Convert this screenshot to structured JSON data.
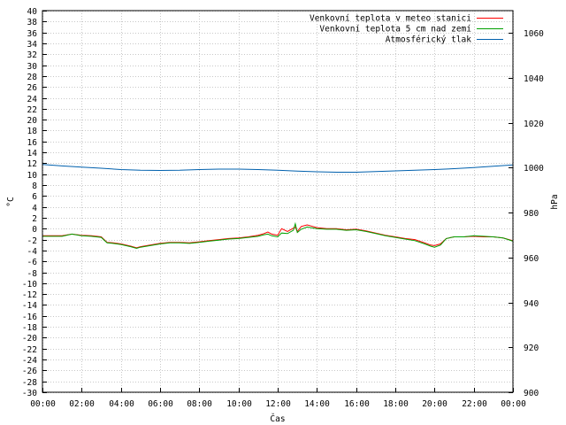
{
  "chart_data": {
    "type": "line",
    "xlabel": "Čas",
    "ylabel_left": "°C",
    "ylabel_right": "hPa",
    "grid": true,
    "legend_position": "top-right",
    "x_ticks": [
      "00:00",
      "02:00",
      "04:00",
      "06:00",
      "08:00",
      "10:00",
      "12:00",
      "14:00",
      "16:00",
      "18:00",
      "20:00",
      "22:00",
      "00:00"
    ],
    "x_hours": [
      0,
      2,
      4,
      6,
      8,
      10,
      12,
      14,
      16,
      18,
      20,
      22,
      24
    ],
    "xlim": [
      0,
      24
    ],
    "ylim_left": [
      -30,
      40
    ],
    "y_left_ticks": [
      40,
      38,
      36,
      34,
      32,
      30,
      28,
      26,
      24,
      22,
      20,
      18,
      16,
      14,
      12,
      10,
      8,
      6,
      4,
      2,
      0,
      -2,
      -4,
      -6,
      -8,
      -10,
      -12,
      -14,
      -16,
      -18,
      -20,
      -22,
      -24,
      -26,
      -28,
      -30
    ],
    "ylim_right": [
      900,
      1070
    ],
    "y_right_ticks": [
      1060,
      1040,
      1020,
      1000,
      980,
      960,
      940,
      920,
      900
    ],
    "series": [
      {
        "name": "Venkovní teplota v meteo stanici",
        "axis": "left",
        "color": "#ff0000",
        "x": [
          0,
          1,
          1.5,
          2,
          2.5,
          3,
          3.3,
          3.6,
          4,
          4.5,
          4.8,
          5,
          5.5,
          6,
          6.5,
          7,
          7.5,
          8,
          8.5,
          9,
          9.5,
          10,
          10.5,
          11,
          11.3,
          11.5,
          11.7,
          12,
          12.2,
          12.5,
          12.8,
          12.9,
          13,
          13.2,
          13.5,
          13.7,
          14,
          14.5,
          15,
          15.5,
          16,
          16.5,
          17,
          17.5,
          18,
          18.5,
          19,
          19.5,
          19.8,
          20,
          20.3,
          20.6,
          21,
          21.5,
          22,
          22.5,
          23,
          23.5,
          24
        ],
        "y": [
          -1.3,
          -1.3,
          -1.0,
          -1.2,
          -1.3,
          -1.5,
          -2.5,
          -2.6,
          -2.8,
          -3.2,
          -3.5,
          -3.3,
          -3.0,
          -2.7,
          -2.5,
          -2.5,
          -2.6,
          -2.4,
          -2.2,
          -2.0,
          -1.8,
          -1.7,
          -1.5,
          -1.2,
          -0.9,
          -0.6,
          -1.0,
          -1.2,
          0.0,
          -0.5,
          0.1,
          0.3,
          -0.5,
          0.4,
          0.7,
          0.5,
          0.2,
          0.0,
          0.0,
          -0.2,
          -0.1,
          -0.4,
          -0.8,
          -1.2,
          -1.5,
          -1.8,
          -2.0,
          -2.6,
          -3.0,
          -3.1,
          -2.8,
          -1.8,
          -1.5,
          -1.5,
          -1.4,
          -1.5,
          -1.5,
          -1.7,
          -2.2
        ]
      },
      {
        "name": "Venkovní teplota 5 cm nad zemí",
        "axis": "left",
        "color": "#00a000",
        "x": [
          0,
          1,
          1.5,
          2,
          2.5,
          3,
          3.3,
          3.6,
          4,
          4.5,
          4.8,
          5,
          5.5,
          6,
          6.5,
          7,
          7.5,
          8,
          8.5,
          9,
          9.5,
          10,
          10.5,
          11,
          11.3,
          11.5,
          11.7,
          12,
          12.2,
          12.5,
          12.8,
          12.9,
          13,
          13.2,
          13.5,
          13.7,
          14,
          14.5,
          15,
          15.5,
          16,
          16.5,
          17,
          17.5,
          18,
          18.5,
          19,
          19.5,
          19.8,
          20,
          20.3,
          20.6,
          21,
          21.5,
          22,
          22.5,
          23,
          23.5,
          24
        ],
        "y": [
          -1.4,
          -1.4,
          -1.0,
          -1.3,
          -1.4,
          -1.6,
          -2.6,
          -2.7,
          -2.9,
          -3.3,
          -3.6,
          -3.4,
          -3.1,
          -2.8,
          -2.6,
          -2.6,
          -2.7,
          -2.5,
          -2.3,
          -2.1,
          -1.9,
          -1.8,
          -1.6,
          -1.4,
          -1.1,
          -1.0,
          -1.3,
          -1.5,
          -0.8,
          -0.9,
          -0.3,
          0.9,
          -0.7,
          -0.1,
          0.3,
          0.2,
          0.0,
          -0.1,
          -0.1,
          -0.3,
          -0.2,
          -0.5,
          -0.9,
          -1.3,
          -1.6,
          -1.9,
          -2.2,
          -2.8,
          -3.2,
          -3.4,
          -3.0,
          -1.8,
          -1.5,
          -1.5,
          -1.3,
          -1.4,
          -1.5,
          -1.7,
          -2.3
        ]
      },
      {
        "name": "Atmosférický tlak",
        "axis": "right",
        "color": "#0060ad",
        "x": [
          0,
          1,
          2,
          3,
          4,
          5,
          6,
          7,
          8,
          9,
          10,
          11,
          12,
          13,
          14,
          15,
          16,
          17,
          18,
          19,
          20,
          21,
          22,
          23,
          24
        ],
        "y": [
          1001.5,
          1000.8,
          1000.3,
          999.8,
          999.2,
          998.9,
          998.8,
          998.9,
          999.2,
          999.4,
          999.4,
          999.2,
          998.9,
          998.5,
          998.2,
          998.0,
          998.0,
          998.3,
          998.6,
          998.9,
          999.2,
          999.6,
          1000.1,
          1000.7,
          1001.3
        ]
      }
    ]
  }
}
